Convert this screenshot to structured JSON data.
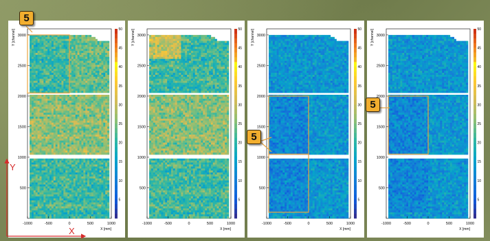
{
  "slide": {
    "callout_text": "5",
    "axis_y_letter": "Y",
    "axis_x_letter": "X"
  },
  "colors": {
    "background": "#7f8a5a",
    "callout_fill": "#f2ae2e",
    "highlight_box": "#e8a341",
    "axis_arrow": "#d62b2b"
  },
  "chart_data": [
    {
      "type": "heatmap",
      "title": "",
      "xlabel": "X [mm]",
      "ylabel": "Y [channel]",
      "xlim": [
        -1000,
        1000
      ],
      "ylim": [
        0,
        3100
      ],
      "x_ticks": [
        "-1000",
        "-500",
        "0",
        "500",
        "1000"
      ],
      "y_ticks": [
        "500",
        "1000",
        "1500",
        "2000",
        "2500",
        "3000"
      ],
      "colorbar_range": [
        0,
        50
      ],
      "colorbar_ticks": [
        "5",
        "10",
        "15",
        "20",
        "25",
        "30",
        "35",
        "40",
        "45",
        "50"
      ],
      "tone": "warm",
      "highlight_regions": [
        {
          "x": [
            -1000,
            0
          ],
          "y": [
            2050,
            3000
          ]
        }
      ]
    },
    {
      "type": "heatmap",
      "title": "",
      "xlabel": "X [mm]",
      "ylabel": "Y [channel]",
      "xlim": [
        -1000,
        1000
      ],
      "ylim": [
        0,
        3100
      ],
      "x_ticks": [
        "-1000",
        "-500",
        "0",
        "500",
        "1000"
      ],
      "y_ticks": [
        "500",
        "1000",
        "1500",
        "2000",
        "2500",
        "3000"
      ],
      "colorbar_range": [
        0,
        50
      ],
      "colorbar_ticks": [
        "5",
        "10",
        "15",
        "20",
        "25",
        "30",
        "35",
        "40",
        "45",
        "50"
      ],
      "tone": "warm",
      "highlight_regions": []
    },
    {
      "type": "heatmap",
      "title": "",
      "xlabel": "X [mm]",
      "ylabel": "Y [channel]",
      "xlim": [
        -1000,
        1000
      ],
      "ylim": [
        0,
        3100
      ],
      "x_ticks": [
        "-1000",
        "-500",
        "0",
        "500",
        "1000"
      ],
      "y_ticks": [
        "500",
        "1000",
        "1500",
        "2000",
        "2500",
        "3000"
      ],
      "colorbar_range": [
        0,
        50
      ],
      "colorbar_ticks": [
        "5",
        "10",
        "15",
        "20",
        "25",
        "30",
        "35",
        "40",
        "45",
        "50"
      ],
      "tone": "cool",
      "highlight_regions": [
        {
          "x": [
            -950,
            0
          ],
          "y": [
            1050,
            2000
          ]
        },
        {
          "x": [
            -950,
            0
          ],
          "y": [
            100,
            1050
          ]
        }
      ]
    },
    {
      "type": "heatmap",
      "title": "",
      "xlabel": "X [mm]",
      "ylabel": "Y [channel]",
      "xlim": [
        -1000,
        1000
      ],
      "ylim": [
        0,
        3100
      ],
      "x_ticks": [
        "-1000",
        "-500",
        "0",
        "500",
        "1000"
      ],
      "y_ticks": [
        "500",
        "1000",
        "1500",
        "2000",
        "2500",
        "3000"
      ],
      "colorbar_range": [
        0,
        50
      ],
      "colorbar_ticks": [
        "5",
        "10",
        "15",
        "20",
        "25",
        "30",
        "35",
        "40",
        "45",
        "50"
      ],
      "tone": "cool",
      "highlight_regions": [
        {
          "x": [
            -950,
            0
          ],
          "y": [
            1050,
            2000
          ]
        }
      ]
    }
  ]
}
